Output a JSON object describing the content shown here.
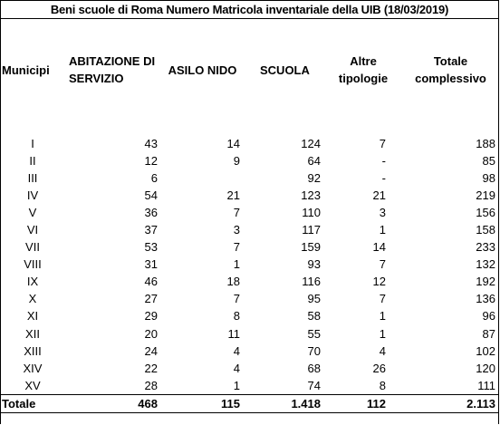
{
  "title": "Beni scuole di Roma Numero Matricola inventariale della UIB (18/03/2019)",
  "headers": {
    "municipi": "Municipi",
    "abitazione_line1": "ABITAZIONE DI",
    "abitazione_line2": "SERVIZIO",
    "asilo_nido": "ASILO NIDO",
    "scuola": "SCUOLA",
    "altre_line1": "Altre",
    "altre_line2": "tipologie",
    "totale_line1": "Totale",
    "totale_line2": "complessivo"
  },
  "rows": [
    {
      "municipio": "I",
      "abitazione": "43",
      "asilo": "14",
      "scuola": "124",
      "altre": "7",
      "totale": "188"
    },
    {
      "municipio": "II",
      "abitazione": "12",
      "asilo": "9",
      "scuola": "64",
      "altre": "-",
      "totale": "85"
    },
    {
      "municipio": "III",
      "abitazione": "6",
      "asilo": "",
      "scuola": "92",
      "altre": "-",
      "totale": "98"
    },
    {
      "municipio": "IV",
      "abitazione": "54",
      "asilo": "21",
      "scuola": "123",
      "altre": "21",
      "totale": "219"
    },
    {
      "municipio": "V",
      "abitazione": "36",
      "asilo": "7",
      "scuola": "110",
      "altre": "3",
      "totale": "156"
    },
    {
      "municipio": "VI",
      "abitazione": "37",
      "asilo": "3",
      "scuola": "117",
      "altre": "1",
      "totale": "158"
    },
    {
      "municipio": "VII",
      "abitazione": "53",
      "asilo": "7",
      "scuola": "159",
      "altre": "14",
      "totale": "233"
    },
    {
      "municipio": "VIII",
      "abitazione": "31",
      "asilo": "1",
      "scuola": "93",
      "altre": "7",
      "totale": "132"
    },
    {
      "municipio": "IX",
      "abitazione": "46",
      "asilo": "18",
      "scuola": "116",
      "altre": "12",
      "totale": "192"
    },
    {
      "municipio": "X",
      "abitazione": "27",
      "asilo": "7",
      "scuola": "95",
      "altre": "7",
      "totale": "136"
    },
    {
      "municipio": "XI",
      "abitazione": "29",
      "asilo": "8",
      "scuola": "58",
      "altre": "1",
      "totale": "96"
    },
    {
      "municipio": "XII",
      "abitazione": "20",
      "asilo": "11",
      "scuola": "55",
      "altre": "1",
      "totale": "87"
    },
    {
      "municipio": "XIII",
      "abitazione": "24",
      "asilo": "4",
      "scuola": "70",
      "altre": "4",
      "totale": "102"
    },
    {
      "municipio": "XIV",
      "abitazione": "22",
      "asilo": "4",
      "scuola": "68",
      "altre": "26",
      "totale": "120"
    },
    {
      "municipio": "XV",
      "abitazione": "28",
      "asilo": "1",
      "scuola": "74",
      "altre": "8",
      "totale": "111"
    }
  ],
  "totals": {
    "label": "Totale",
    "abitazione": "468",
    "asilo": "115",
    "scuola": "1.418",
    "altre": "112",
    "totale": "2.113"
  }
}
